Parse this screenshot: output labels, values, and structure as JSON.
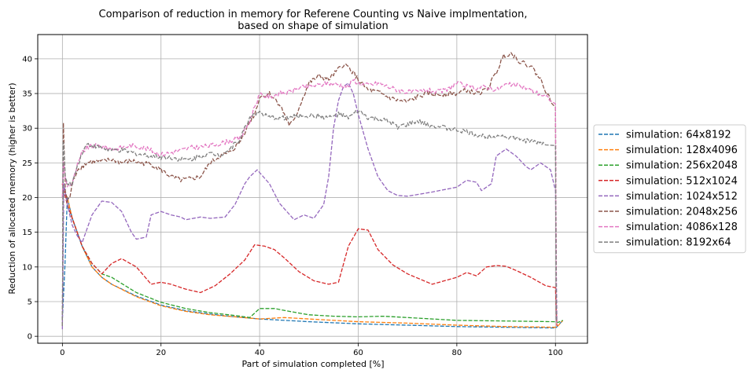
{
  "chart_data": {
    "type": "line",
    "title": "Comparison of reduction in memory for Referene Counting vs Naive implmentation,",
    "subtitle": "based on shape of simulation",
    "xlabel": "Part of simulation completed [%]",
    "ylabel": "Reduction of allocated memory (higher is better)",
    "xlim": [
      -5,
      106.5
    ],
    "ylim": [
      -1,
      43.5
    ],
    "xticks": [
      0,
      20,
      40,
      60,
      80,
      100
    ],
    "yticks": [
      0,
      5,
      10,
      15,
      20,
      25,
      30,
      35,
      40
    ],
    "grid": true,
    "legend_position": "right",
    "series": [
      {
        "name": "simulation: 64x8192",
        "color": "#1f77b4",
        "style": "dashed",
        "noisy": false,
        "x": [
          0,
          0.5,
          1,
          2,
          4,
          6,
          8,
          10,
          15,
          20,
          25,
          30,
          35,
          40,
          50,
          60,
          70,
          80,
          90,
          100,
          100.2,
          101.5
        ],
        "y": [
          2.5,
          10,
          20,
          17,
          13,
          10,
          8.5,
          7.5,
          5.8,
          4.5,
          3.7,
          3.2,
          2.8,
          2.5,
          2.1,
          1.8,
          1.6,
          1.4,
          1.3,
          1.2,
          1.3,
          2.3
        ]
      },
      {
        "name": "simulation: 128x4096",
        "color": "#ff7f0e",
        "style": "dashed",
        "noisy": false,
        "x": [
          0,
          0.3,
          1,
          2,
          4,
          6,
          8,
          10,
          15,
          20,
          25,
          30,
          35,
          40,
          45,
          50,
          60,
          70,
          80,
          90,
          100,
          100.5,
          101.5
        ],
        "y": [
          22,
          21,
          20,
          17,
          13,
          10,
          8.5,
          7.5,
          5.7,
          4.4,
          3.6,
          3.1,
          2.8,
          2.5,
          2.7,
          2.5,
          2.1,
          1.9,
          1.6,
          1.4,
          1.3,
          1.5,
          2.3
        ]
      },
      {
        "name": "simulation: 256x2048",
        "color": "#2ca02c",
        "style": "dashed",
        "noisy": false,
        "x": [
          0,
          0.3,
          1,
          2,
          4,
          6,
          8,
          10,
          15,
          20,
          25,
          30,
          35,
          38,
          40,
          43,
          46,
          50,
          55,
          60,
          65,
          70,
          80,
          90,
          100,
          100.5,
          101.5
        ],
        "y": [
          20,
          21,
          19,
          17,
          13,
          10.5,
          9,
          8.5,
          6.3,
          4.9,
          4,
          3.4,
          3,
          2.7,
          4,
          4,
          3.6,
          3.1,
          2.9,
          2.8,
          2.9,
          2.7,
          2.3,
          2.2,
          2.1,
          2.0,
          2.3
        ]
      },
      {
        "name": "simulation: 512x1024",
        "color": "#d62728",
        "style": "dashed",
        "noisy": false,
        "x": [
          0,
          0.3,
          1,
          2,
          4,
          6,
          8,
          10,
          12,
          15,
          18,
          20,
          22,
          25,
          28,
          31,
          34,
          37,
          39,
          41,
          43,
          45,
          48,
          51,
          54,
          56,
          58,
          60,
          62,
          64,
          67,
          70,
          75,
          80,
          82,
          84,
          86,
          88,
          90,
          92,
          95,
          98,
          100,
          100.3
        ],
        "y": [
          22,
          21,
          19,
          17,
          13,
          10.5,
          9,
          10.5,
          11.2,
          10,
          7.5,
          7.8,
          7.5,
          6.8,
          6.3,
          7.3,
          9,
          11,
          13.2,
          13,
          12.5,
          11.3,
          9.3,
          8,
          7.5,
          7.8,
          13,
          15.5,
          15.3,
          12.5,
          10.3,
          9,
          7.5,
          8.5,
          9.2,
          8.7,
          10,
          10.2,
          10.1,
          9.5,
          8.5,
          7.3,
          7,
          1.5
        ]
      },
      {
        "name": "simulation: 1024x512",
        "color": "#9467bd",
        "style": "dashed",
        "noisy": false,
        "x": [
          0,
          0.3,
          1,
          2,
          3,
          4,
          6,
          8,
          10,
          12,
          14,
          15,
          17,
          18,
          20,
          22,
          24,
          25,
          28,
          30,
          33,
          35,
          37,
          38,
          39.5,
          42,
          44,
          47,
          49,
          51,
          53,
          54,
          55,
          56,
          57,
          58,
          59,
          60,
          62,
          64,
          66,
          68,
          70,
          75,
          80,
          82,
          84,
          85,
          87,
          88,
          90,
          92,
          94,
          95,
          97,
          99,
          100,
          100.3
        ],
        "y": [
          1,
          22,
          19,
          16,
          14.5,
          13.5,
          17.5,
          19.5,
          19.3,
          18,
          15,
          14,
          14.3,
          17.5,
          18,
          17.5,
          17.2,
          16.8,
          17.2,
          17,
          17.2,
          19,
          22,
          23,
          24,
          22,
          19.2,
          16.8,
          17.5,
          17,
          19,
          23,
          30,
          34,
          36,
          36.5,
          35,
          32,
          27,
          23,
          21,
          20.3,
          20.2,
          20.8,
          21.5,
          22.5,
          22.2,
          21,
          22,
          26,
          27,
          26,
          24.5,
          24,
          25,
          24,
          21,
          2
        ]
      },
      {
        "name": "simulation: 2048x256",
        "color": "#8c564b",
        "style": "dashed",
        "noisy": true,
        "x": [
          0,
          0.2,
          0.6,
          1,
          1.5,
          2,
          3,
          4,
          5,
          6,
          8,
          10,
          12,
          14,
          16,
          18,
          20,
          22,
          24,
          26,
          28,
          30,
          32,
          34,
          36,
          38,
          39,
          40,
          42,
          44,
          46,
          47,
          48,
          50,
          52,
          54,
          56,
          57,
          58,
          59,
          60,
          62,
          64,
          66,
          68,
          70,
          72,
          74,
          76,
          78,
          80,
          82,
          84,
          86,
          88,
          89.5,
          91,
          93,
          95,
          97,
          99,
          100,
          100.2
        ],
        "y": [
          1.5,
          30.5,
          21,
          19.5,
          20,
          22,
          24,
          24.5,
          25,
          25.2,
          25.2,
          25.5,
          25,
          25.3,
          25,
          24.8,
          24,
          23,
          22.5,
          22.7,
          23,
          25,
          26,
          26.5,
          28,
          31,
          32,
          34.5,
          35,
          33.5,
          30.5,
          31,
          33,
          36.5,
          37.5,
          37,
          38.5,
          39.2,
          38.8,
          38,
          37,
          35.5,
          35.2,
          34.5,
          34,
          33.8,
          34.5,
          35,
          34.8,
          35,
          35,
          35.5,
          35,
          35.5,
          38,
          40.5,
          40.8,
          39.5,
          39,
          37,
          34,
          33,
          2.5
        ]
      },
      {
        "name": "simulation: 4086x128",
        "color": "#e377c2",
        "style": "dashed",
        "noisy": true,
        "x": [
          0,
          0.2,
          0.6,
          1,
          2,
          3,
          4,
          5,
          7,
          10,
          12,
          14,
          16,
          18,
          20,
          22,
          24,
          26,
          28,
          30,
          32,
          34,
          36,
          38,
          39,
          40,
          42,
          44,
          46,
          48,
          50,
          52,
          54,
          56,
          58,
          59,
          60,
          62,
          64,
          66,
          68,
          70,
          72,
          74,
          76,
          78,
          80,
          82,
          84,
          86,
          88,
          90,
          92,
          94,
          96,
          98,
          99,
          100,
          100.2
        ],
        "y": [
          20,
          25,
          22.5,
          21.8,
          22,
          24.5,
          26.5,
          27.2,
          27.5,
          27,
          27.2,
          27.5,
          27.3,
          26.8,
          26.2,
          26.5,
          26.8,
          27.2,
          27.3,
          27.5,
          27.8,
          28.2,
          28.5,
          31,
          33.2,
          34.8,
          34.5,
          35,
          35.2,
          35.8,
          36,
          36.2,
          36.5,
          36.3,
          36,
          37,
          36.5,
          36.2,
          36.5,
          36,
          35.5,
          35.2,
          35.2,
          35.5,
          35.2,
          35.5,
          36.5,
          36,
          35.8,
          36,
          35.5,
          36.3,
          36.2,
          35.8,
          35.2,
          34.5,
          34.2,
          33.5,
          2
        ]
      },
      {
        "name": "simulation: 8192x64",
        "color": "#7f7f7f",
        "style": "dashed",
        "noisy": true,
        "x": [
          0,
          0.2,
          0.6,
          1,
          2,
          3,
          4,
          5,
          7,
          10,
          12,
          14,
          16,
          18,
          20,
          22,
          24,
          26,
          28,
          30,
          32,
          34,
          36,
          37,
          38,
          39,
          40,
          42,
          44,
          46,
          48,
          50,
          52,
          54,
          56,
          58,
          60,
          62,
          64,
          66,
          68,
          70,
          72,
          74,
          76,
          78,
          80,
          82,
          84,
          86,
          88,
          90,
          92,
          94,
          96,
          98,
          100,
          100.2
        ],
        "y": [
          1.5,
          28,
          23,
          21.8,
          22,
          24.5,
          26.5,
          27.7,
          27.3,
          26.8,
          26.8,
          26.5,
          26.2,
          26,
          25.8,
          25.8,
          25.5,
          25.5,
          26,
          26.3,
          26.2,
          27,
          28.5,
          30,
          31.5,
          32.2,
          32.2,
          31.5,
          31.5,
          31.5,
          31.8,
          31.8,
          31.8,
          31.5,
          32,
          31.5,
          32.5,
          31.5,
          31.3,
          31,
          30.2,
          30.5,
          31,
          30.5,
          30.3,
          30,
          29.7,
          29.5,
          29,
          28.8,
          29,
          28.8,
          28.5,
          28.2,
          28,
          27.8,
          27.5,
          2
        ]
      }
    ]
  }
}
